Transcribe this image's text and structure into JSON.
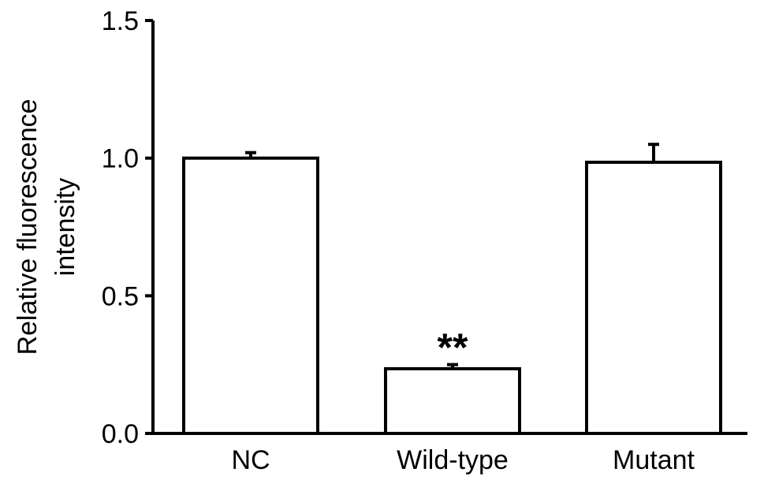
{
  "chart_data": {
    "type": "bar",
    "title": "",
    "xlabel": "",
    "ylabel_lines": [
      "Relative fluorescence",
      "intensity"
    ],
    "categories": [
      "NC",
      "Wild-type",
      "Mutant"
    ],
    "values": [
      1.0,
      0.235,
      0.985
    ],
    "errors": [
      0.02,
      0.015,
      0.065
    ],
    "annotations": [
      "",
      "**",
      ""
    ],
    "ylim": [
      0,
      1.5
    ],
    "yticks": [
      0.0,
      0.5,
      1.0,
      1.5
    ],
    "ytick_labels": [
      "0.0",
      "0.5",
      "1.0",
      "1.5"
    ],
    "grid": false,
    "legend": "none",
    "bar_fill": "#ffffff",
    "bar_stroke": "#000000"
  }
}
